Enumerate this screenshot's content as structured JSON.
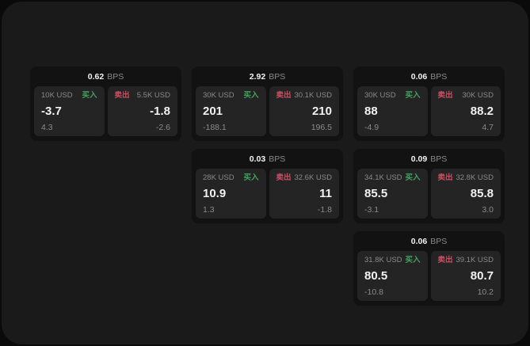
{
  "colors": {
    "page_bg": "#0a0a0a",
    "panel_bg": "#1a1a1a",
    "card_bg": "#121212",
    "subcard_bg": "#242424",
    "text_primary": "#f2f2f2",
    "text_muted": "#8a8a8a",
    "buy_green": "#43a25e",
    "sell_red": "#ce4e62"
  },
  "labels": {
    "bps_unit": "BPS",
    "buy": "买入",
    "sell": "卖出"
  },
  "cards": [
    {
      "row": 1,
      "col": 1,
      "bps": "0.62",
      "buy": {
        "amount": "10K USD",
        "value": "-3.7",
        "delta": "4.3"
      },
      "sell": {
        "amount": "5.5K USD",
        "value": "-1.8",
        "delta": "-2.6"
      }
    },
    {
      "row": 1,
      "col": 2,
      "bps": "2.92",
      "buy": {
        "amount": "30K USD",
        "value": "201",
        "delta": "-188.1"
      },
      "sell": {
        "amount": "30.1K USD",
        "value": "210",
        "delta": "196.5"
      }
    },
    {
      "row": 1,
      "col": 3,
      "bps": "0.06",
      "buy": {
        "amount": "30K USD",
        "value": "88",
        "delta": "-4.9"
      },
      "sell": {
        "amount": "30K USD",
        "value": "88.2",
        "delta": "4.7"
      }
    },
    {
      "row": 2,
      "col": 2,
      "bps": "0.03",
      "buy": {
        "amount": "28K USD",
        "value": "10.9",
        "delta": "1.3"
      },
      "sell": {
        "amount": "32.6K USD",
        "value": "11",
        "delta": "-1.8"
      }
    },
    {
      "row": 2,
      "col": 3,
      "bps": "0.09",
      "buy": {
        "amount": "34.1K USD",
        "value": "85.5",
        "delta": "-3.1"
      },
      "sell": {
        "amount": "32.8K USD",
        "value": "85.8",
        "delta": "3.0"
      }
    },
    {
      "row": 3,
      "col": 3,
      "bps": "0.06",
      "buy": {
        "amount": "31.8K USD",
        "value": "80.5",
        "delta": "-10.8"
      },
      "sell": {
        "amount": "39.1K USD",
        "value": "80.7",
        "delta": "10.2"
      }
    }
  ]
}
